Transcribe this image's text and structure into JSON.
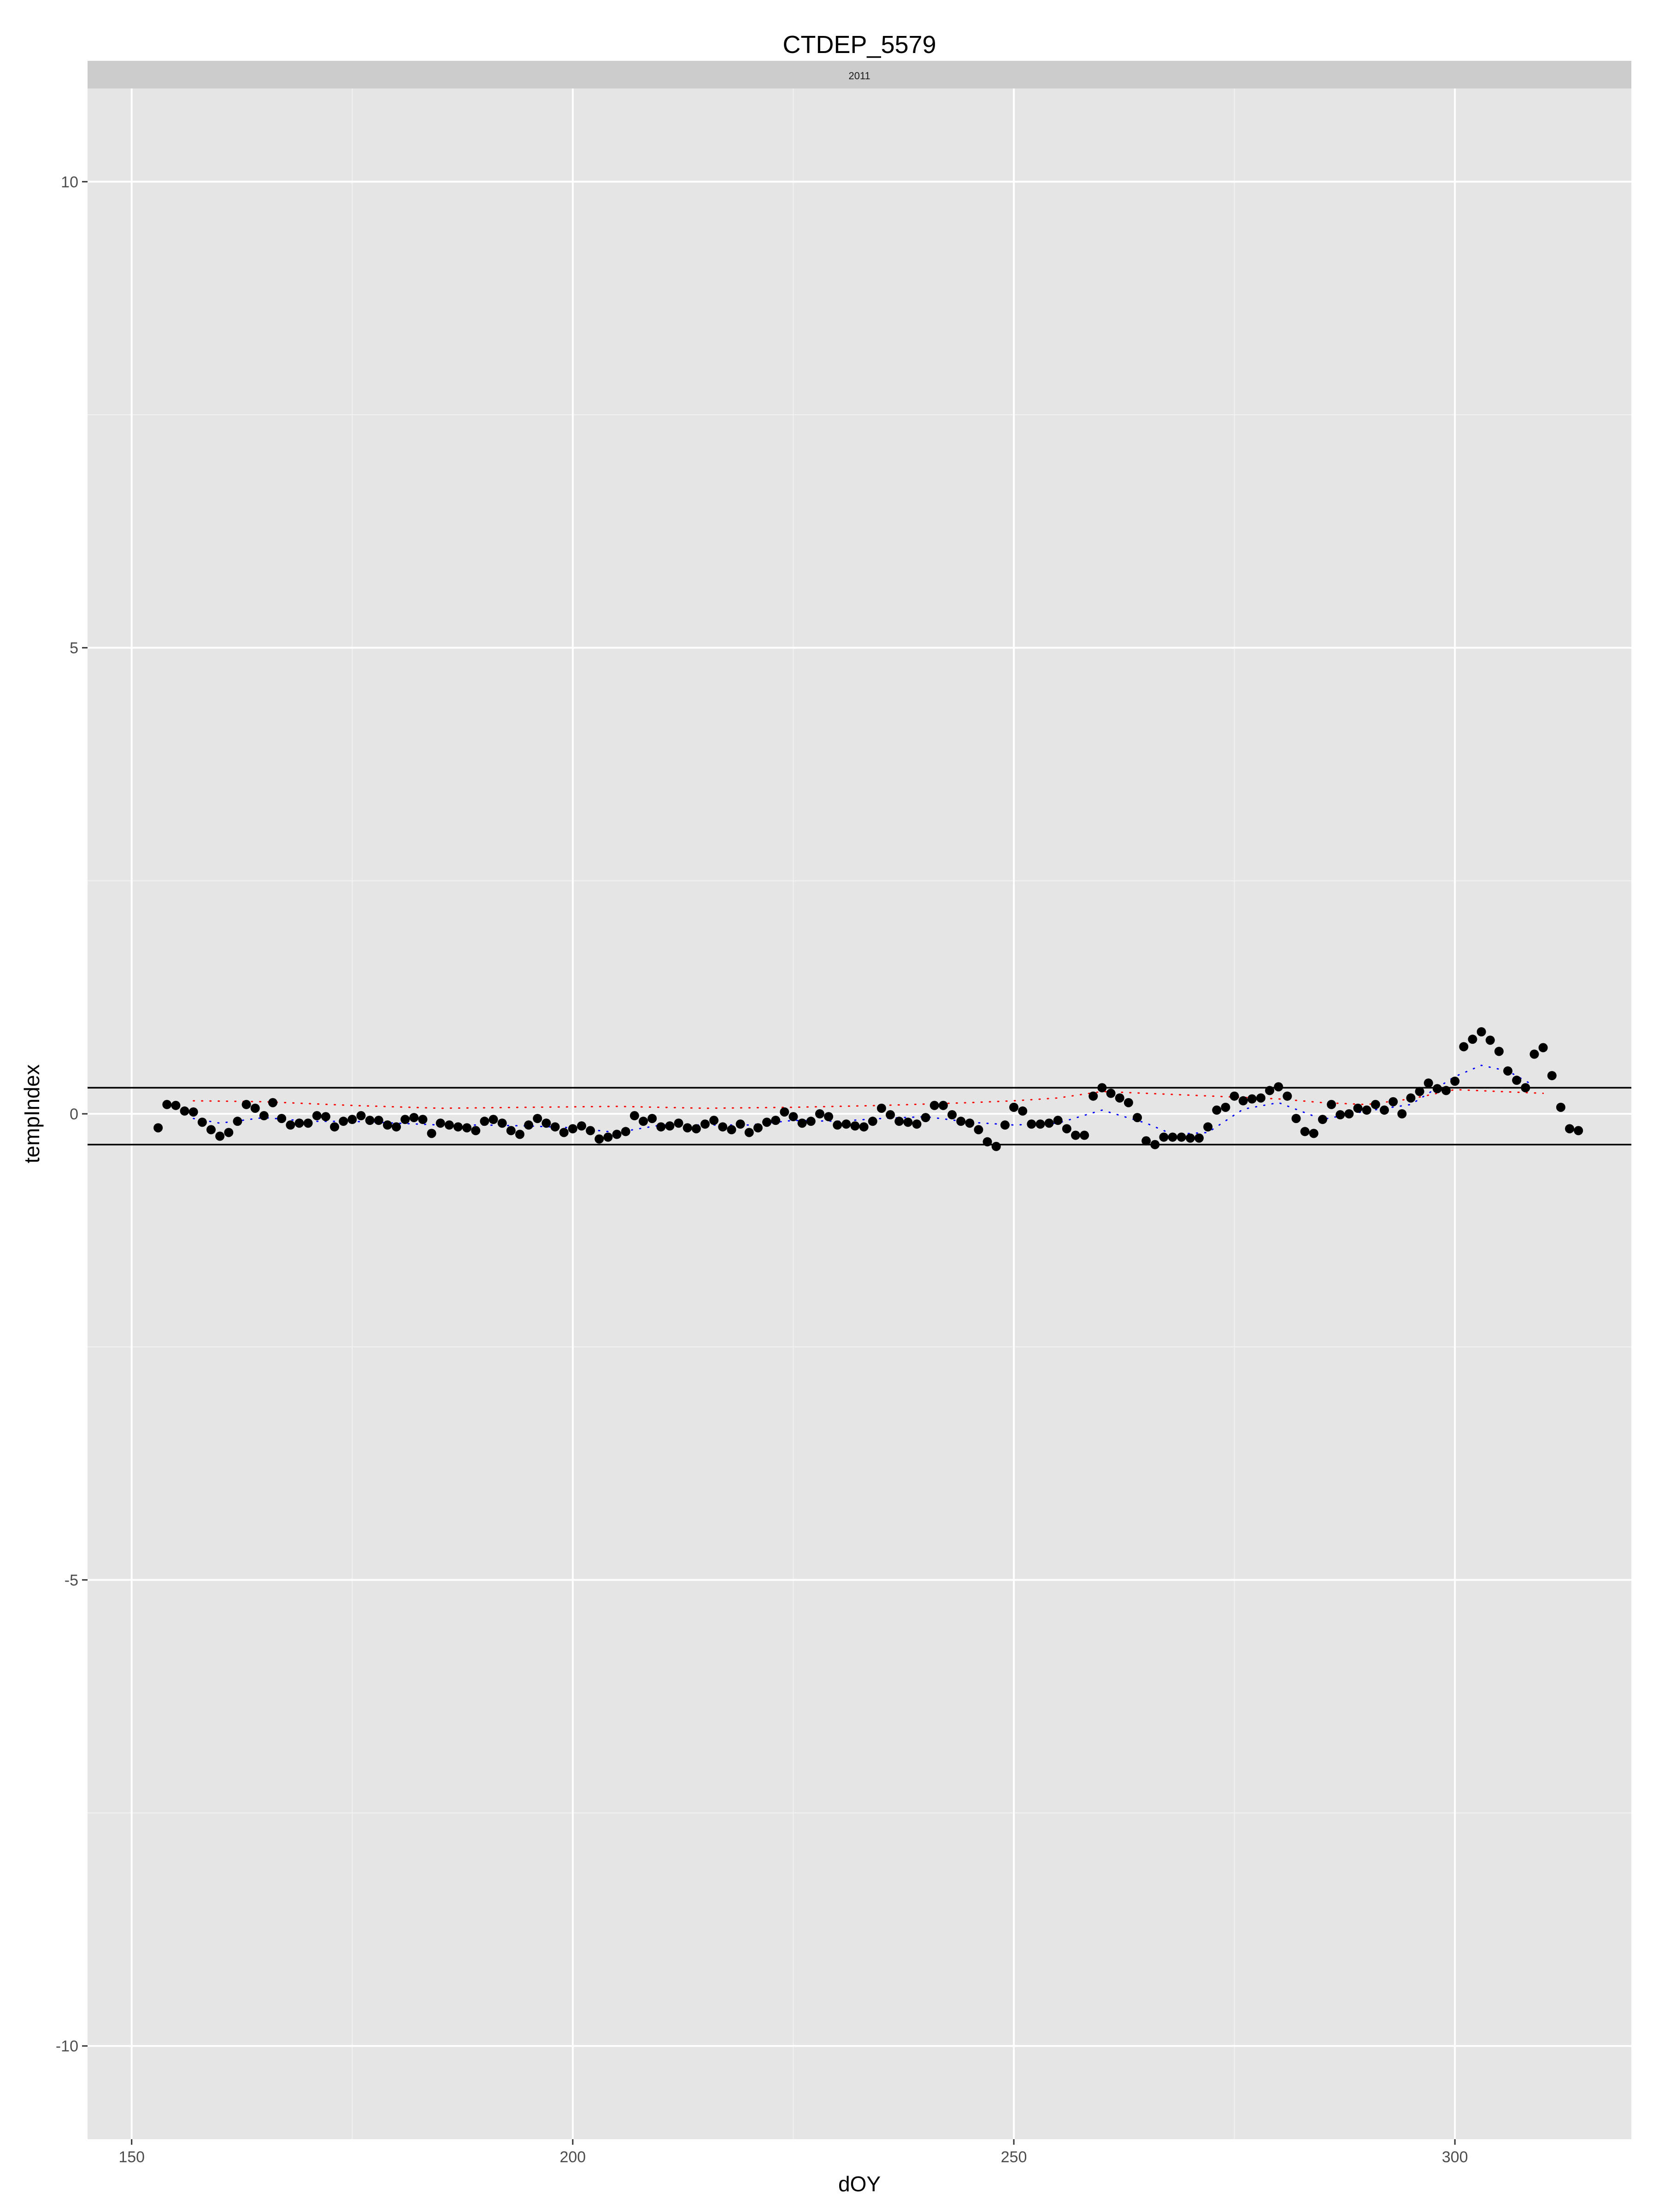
{
  "chart_data": {
    "type": "scatter",
    "title": "CTDEP_5579",
    "facet_label": "2011",
    "xlabel": "dOY",
    "ylabel": "tempIndex",
    "xlim": [
      145,
      167
    ],
    "ylim": [
      -11,
      11
    ],
    "x_ticks": [
      150,
      200,
      250,
      300
    ],
    "y_ticks": [
      -10,
      -5,
      0,
      5,
      10
    ],
    "x_tick_labels": [
      "150",
      "200",
      "250",
      "300"
    ],
    "y_tick_labels": [
      "-10",
      "-5",
      "0",
      "5",
      "10"
    ],
    "grid": true,
    "background_color": "#e5e5e5",
    "grid_color": "#ffffff",
    "point_color": "#000000",
    "hlines": [
      0.28,
      -0.33
    ],
    "points": {
      "x": [
        153,
        154,
        155,
        156,
        157,
        158,
        159,
        160,
        161,
        162,
        163,
        164,
        165,
        166,
        167,
        168,
        169,
        170,
        171,
        172,
        173,
        174,
        175,
        176,
        177,
        178,
        179,
        180,
        181,
        182,
        183,
        184,
        185,
        186,
        187,
        188,
        189,
        190,
        191,
        192,
        193,
        194,
        195,
        196,
        197,
        198,
        199,
        200,
        201,
        202,
        203,
        204,
        205,
        206,
        207,
        208,
        209,
        210,
        211,
        212,
        213,
        214,
        215,
        216,
        217,
        218,
        219,
        220,
        221,
        222,
        223,
        224,
        225,
        226,
        227,
        228,
        229,
        230,
        231,
        232,
        233,
        234,
        235,
        236,
        237,
        238,
        239,
        240,
        241,
        242,
        243,
        244,
        245,
        246,
        247,
        248,
        249,
        250,
        251,
        252,
        253,
        254,
        255,
        256,
        257,
        258,
        259,
        260,
        261,
        262,
        263,
        264,
        265,
        266,
        267,
        268,
        269,
        270,
        271,
        272,
        273,
        274,
        275,
        276,
        277,
        278,
        279,
        280,
        281,
        282,
        283,
        284,
        285,
        286,
        287,
        288,
        289,
        290,
        291,
        292,
        293,
        294,
        295,
        296,
        297,
        298,
        299,
        300,
        301,
        302,
        303,
        304,
        305,
        306,
        307,
        308,
        309,
        310,
        311,
        312,
        313,
        314
      ],
      "y": [
        -0.15,
        0.1,
        0.09,
        0.03,
        0.02,
        -0.09,
        -0.17,
        -0.24,
        -0.2,
        -0.08,
        0.1,
        0.06,
        -0.02,
        0.12,
        -0.05,
        -0.12,
        -0.1,
        -0.1,
        -0.02,
        -0.03,
        -0.14,
        -0.08,
        -0.06,
        -0.02,
        -0.07,
        -0.07,
        -0.12,
        -0.14,
        -0.06,
        -0.04,
        -0.06,
        -0.21,
        -0.1,
        -0.12,
        -0.14,
        -0.15,
        -0.18,
        -0.08,
        -0.06,
        -0.1,
        -0.18,
        -0.22,
        -0.12,
        -0.05,
        -0.1,
        -0.14,
        -0.2,
        -0.16,
        -0.13,
        -0.18,
        -0.27,
        -0.25,
        -0.22,
        -0.19,
        -0.02,
        -0.08,
        -0.05,
        -0.14,
        -0.13,
        -0.1,
        -0.15,
        -0.16,
        -0.11,
        -0.07,
        -0.14,
        -0.17,
        -0.11,
        -0.2,
        -0.15,
        -0.09,
        -0.07,
        0.02,
        -0.03,
        -0.1,
        -0.08,
        0.0,
        -0.03,
        -0.12,
        -0.11,
        -0.13,
        -0.14,
        -0.08,
        0.06,
        -0.01,
        -0.08,
        -0.09,
        -0.11,
        -0.04,
        0.09,
        0.09,
        -0.01,
        -0.08,
        -0.1,
        -0.17,
        -0.3,
        -0.35,
        -0.12,
        0.07,
        0.03,
        -0.11,
        -0.11,
        -0.1,
        -0.07,
        -0.16,
        -0.23,
        -0.23,
        0.19,
        0.28,
        0.22,
        0.17,
        0.12,
        -0.04,
        -0.29,
        -0.33,
        -0.25,
        -0.25,
        -0.25,
        -0.26,
        -0.26,
        -0.14,
        0.04,
        0.07,
        0.19,
        0.14,
        0.16,
        0.17,
        0.25,
        0.29,
        0.19,
        -0.05,
        -0.19,
        -0.21,
        -0.06,
        0.1,
        -0.01,
        0.0,
        0.06,
        0.04,
        0.1,
        0.04,
        0.13,
        0.0,
        0.17,
        0.24,
        0.33,
        0.27,
        0.25,
        0.35,
        0.72,
        0.8,
        0.88,
        0.79,
        0.67,
        0.46,
        0.36,
        0.28,
        0.64,
        0.71,
        0.41,
        0.07,
        -0.16,
        -0.18
      ]
    },
    "red_dotted_line": {
      "x": [
        157,
        165,
        175,
        185,
        195,
        205,
        215,
        225,
        235,
        245,
        250,
        255,
        260,
        265,
        270,
        275,
        280,
        285,
        290,
        295,
        300,
        305,
        310
      ],
      "y": [
        0.14,
        0.13,
        0.09,
        0.06,
        0.07,
        0.08,
        0.06,
        0.07,
        0.09,
        0.12,
        0.14,
        0.17,
        0.24,
        0.22,
        0.2,
        0.18,
        0.16,
        0.12,
        0.1,
        0.16,
        0.26,
        0.24,
        0.22
      ]
    },
    "blue_dotted_line": {
      "x": [
        157,
        160,
        165,
        170,
        175,
        180,
        185,
        190,
        195,
        200,
        205,
        210,
        215,
        220,
        225,
        230,
        235,
        240,
        245,
        250,
        255,
        260,
        265,
        268,
        272,
        276,
        280,
        285,
        290,
        295,
        300,
        303,
        306,
        309
      ],
      "y": [
        -0.05,
        -0.1,
        -0.04,
        -0.08,
        -0.08,
        -0.1,
        -0.12,
        -0.12,
        -0.13,
        -0.15,
        -0.2,
        -0.12,
        -0.12,
        -0.12,
        -0.07,
        -0.08,
        -0.05,
        -0.03,
        -0.09,
        -0.12,
        -0.1,
        0.04,
        -0.1,
        -0.22,
        -0.2,
        0.05,
        0.12,
        -0.06,
        0.03,
        0.1,
        0.4,
        0.52,
        0.46,
        0.3
      ]
    },
    "red_line_color": "#ff0000",
    "blue_line_color": "#0000ff",
    "hline_color": "#000000"
  }
}
